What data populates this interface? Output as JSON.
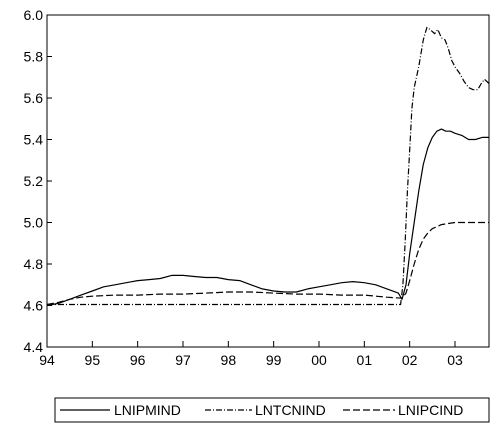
{
  "chart_data": {
    "type": "line",
    "title": "",
    "xlabel": "",
    "ylabel": "",
    "x_ticks": [
      "94",
      "95",
      "96",
      "97",
      "98",
      "99",
      "00",
      "01",
      "02",
      "03"
    ],
    "y_ticks": [
      "4.4",
      "4.6",
      "4.8",
      "5.0",
      "5.2",
      "5.4",
      "5.6",
      "5.8",
      "6.0"
    ],
    "ylim": [
      4.4,
      6.0
    ],
    "xlim": [
      1994.0,
      2003.75
    ],
    "grid": false,
    "legend_position": "bottom",
    "series": [
      {
        "name": "LNIPMIND",
        "style": "solid",
        "points": [
          [
            1994.0,
            4.6
          ],
          [
            1994.25,
            4.61
          ],
          [
            1994.5,
            4.63
          ],
          [
            1994.75,
            4.65
          ],
          [
            1995.0,
            4.67
          ],
          [
            1995.25,
            4.69
          ],
          [
            1995.5,
            4.7
          ],
          [
            1995.75,
            4.71
          ],
          [
            1996.0,
            4.72
          ],
          [
            1996.25,
            4.725
          ],
          [
            1996.5,
            4.73
          ],
          [
            1996.75,
            4.745
          ],
          [
            1997.0,
            4.745
          ],
          [
            1997.25,
            4.74
          ],
          [
            1997.5,
            4.735
          ],
          [
            1997.75,
            4.735
          ],
          [
            1998.0,
            4.725
          ],
          [
            1998.25,
            4.72
          ],
          [
            1998.5,
            4.7
          ],
          [
            1998.75,
            4.68
          ],
          [
            1999.0,
            4.67
          ],
          [
            1999.25,
            4.665
          ],
          [
            1999.5,
            4.665
          ],
          [
            1999.75,
            4.68
          ],
          [
            2000.0,
            4.69
          ],
          [
            2000.25,
            4.7
          ],
          [
            2000.5,
            4.71
          ],
          [
            2000.75,
            4.715
          ],
          [
            2001.0,
            4.71
          ],
          [
            2001.25,
            4.7
          ],
          [
            2001.5,
            4.68
          ],
          [
            2001.75,
            4.66
          ],
          [
            2001.83,
            4.63
          ],
          [
            2001.92,
            4.7
          ],
          [
            2002.0,
            4.85
          ],
          [
            2002.1,
            5.0
          ],
          [
            2002.2,
            5.15
          ],
          [
            2002.3,
            5.28
          ],
          [
            2002.4,
            5.36
          ],
          [
            2002.5,
            5.41
          ],
          [
            2002.6,
            5.44
          ],
          [
            2002.7,
            5.45
          ],
          [
            2002.8,
            5.44
          ],
          [
            2002.9,
            5.44
          ],
          [
            2003.0,
            5.43
          ],
          [
            2003.15,
            5.42
          ],
          [
            2003.3,
            5.4
          ],
          [
            2003.45,
            5.4
          ],
          [
            2003.6,
            5.41
          ],
          [
            2003.75,
            5.41
          ]
        ]
      },
      {
        "name": "LNTCNIND",
        "style": "dashdot",
        "points": [
          [
            1994.0,
            4.605
          ],
          [
            1995.0,
            4.605
          ],
          [
            1996.0,
            4.605
          ],
          [
            1997.0,
            4.605
          ],
          [
            1998.0,
            4.605
          ],
          [
            1999.0,
            4.605
          ],
          [
            2000.0,
            4.605
          ],
          [
            2001.0,
            4.605
          ],
          [
            2001.8,
            4.605
          ],
          [
            2001.85,
            4.7
          ],
          [
            2001.9,
            4.9
          ],
          [
            2001.95,
            5.15
          ],
          [
            2002.0,
            5.35
          ],
          [
            2002.05,
            5.55
          ],
          [
            2002.1,
            5.65
          ],
          [
            2002.2,
            5.75
          ],
          [
            2002.3,
            5.88
          ],
          [
            2002.38,
            5.94
          ],
          [
            2002.45,
            5.93
          ],
          [
            2002.55,
            5.91
          ],
          [
            2002.62,
            5.93
          ],
          [
            2002.7,
            5.89
          ],
          [
            2002.78,
            5.88
          ],
          [
            2002.85,
            5.84
          ],
          [
            2002.93,
            5.78
          ],
          [
            2003.0,
            5.75
          ],
          [
            2003.1,
            5.72
          ],
          [
            2003.2,
            5.68
          ],
          [
            2003.3,
            5.65
          ],
          [
            2003.4,
            5.64
          ],
          [
            2003.5,
            5.64
          ],
          [
            2003.58,
            5.67
          ],
          [
            2003.65,
            5.69
          ],
          [
            2003.75,
            5.67
          ]
        ]
      },
      {
        "name": "LNIPCIND",
        "style": "dashed",
        "points": [
          [
            1994.0,
            4.605
          ],
          [
            1994.25,
            4.615
          ],
          [
            1994.5,
            4.63
          ],
          [
            1994.75,
            4.64
          ],
          [
            1995.0,
            4.645
          ],
          [
            1995.5,
            4.65
          ],
          [
            1996.0,
            4.65
          ],
          [
            1996.5,
            4.655
          ],
          [
            1997.0,
            4.655
          ],
          [
            1997.5,
            4.66
          ],
          [
            1998.0,
            4.665
          ],
          [
            1998.5,
            4.665
          ],
          [
            1999.0,
            4.66
          ],
          [
            1999.5,
            4.655
          ],
          [
            2000.0,
            4.655
          ],
          [
            2000.5,
            4.65
          ],
          [
            2001.0,
            4.65
          ],
          [
            2001.5,
            4.64
          ],
          [
            2001.83,
            4.635
          ],
          [
            2001.92,
            4.66
          ],
          [
            2002.0,
            4.72
          ],
          [
            2002.1,
            4.8
          ],
          [
            2002.2,
            4.87
          ],
          [
            2002.3,
            4.92
          ],
          [
            2002.4,
            4.95
          ],
          [
            2002.5,
            4.97
          ],
          [
            2002.6,
            4.98
          ],
          [
            2002.7,
            4.99
          ],
          [
            2002.85,
            4.995
          ],
          [
            2003.0,
            5.0
          ],
          [
            2003.3,
            5.0
          ],
          [
            2003.75,
            5.0
          ]
        ]
      }
    ]
  }
}
